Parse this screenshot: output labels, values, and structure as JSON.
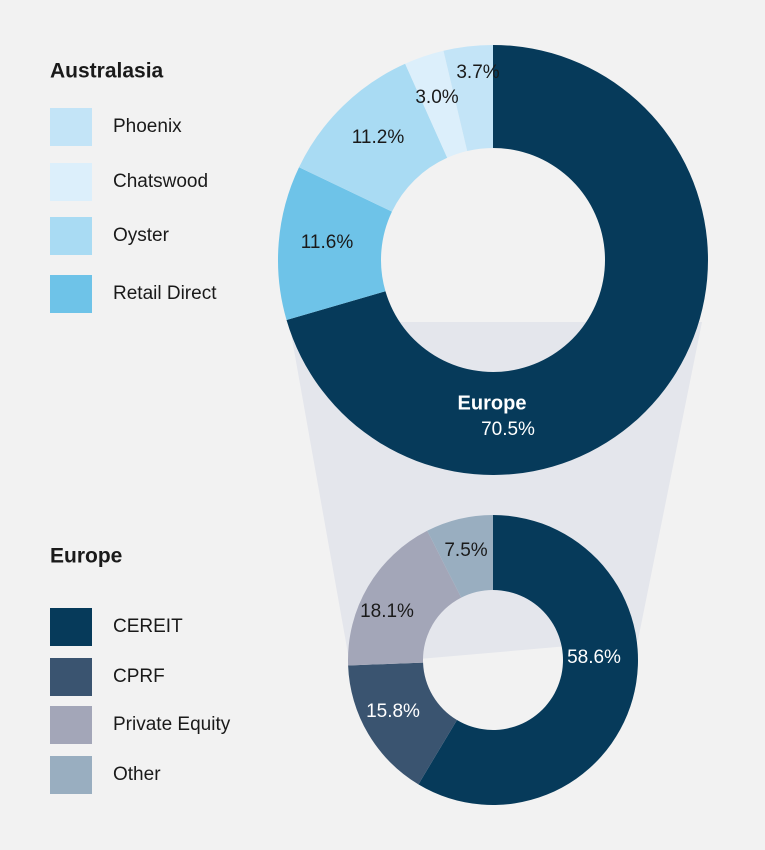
{
  "chart_data": [
    {
      "type": "pie",
      "legend_title": "Australasia",
      "donut": true,
      "categories": [
        "Europe",
        "Retail Direct",
        "Oyster",
        "Chatswood",
        "Phoenix"
      ],
      "values": [
        70.5,
        11.6,
        11.2,
        3.0,
        3.7
      ],
      "value_labels": [
        "70.5%",
        "11.6%",
        "11.2%",
        "3.0%",
        "3.7%"
      ],
      "colors": [
        "#063a5a",
        "#6ec3e8",
        "#a9dbf3",
        "#dceffb",
        "#c3e4f7"
      ]
    },
    {
      "type": "pie",
      "legend_title": "Europe",
      "donut": true,
      "categories": [
        "CEREIT",
        "CPRF",
        "Private Equity",
        "Other"
      ],
      "values": [
        58.6,
        15.8,
        18.1,
        7.5
      ],
      "value_labels": [
        "58.6%",
        "15.8%",
        "18.1%",
        "7.5%"
      ],
      "colors": [
        "#063a5a",
        "#3a5470",
        "#a3a6b8",
        "#99aec0"
      ]
    }
  ]
}
